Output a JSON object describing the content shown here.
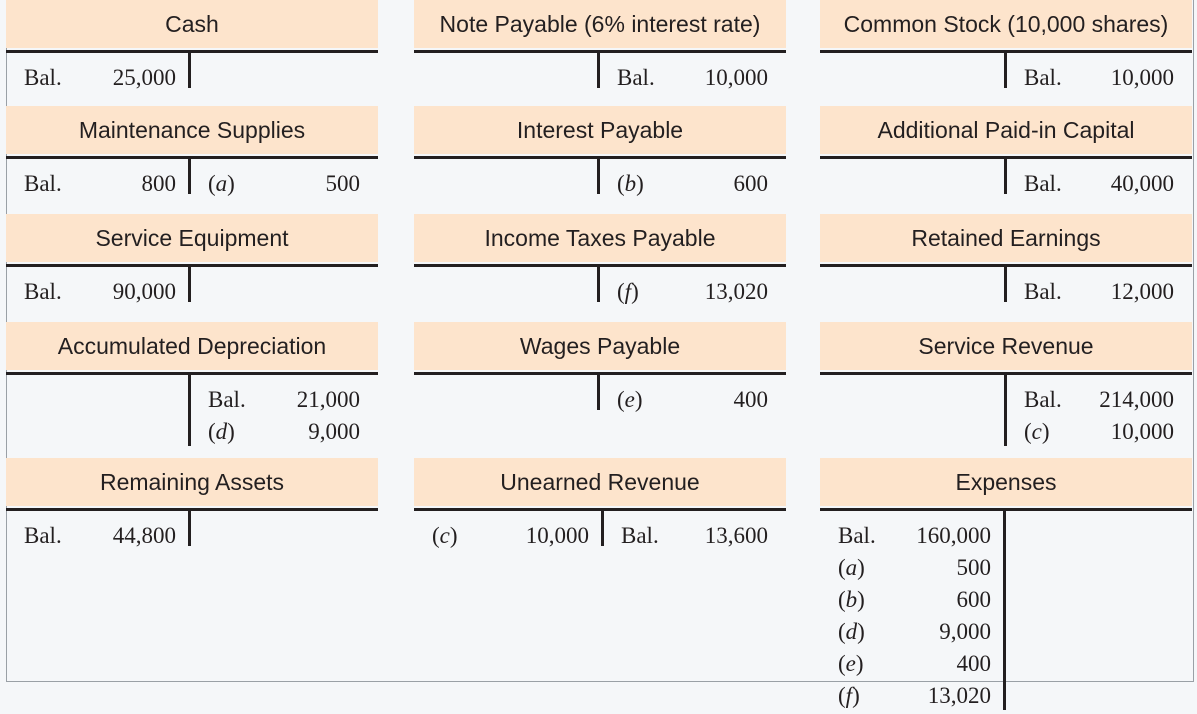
{
  "accounts": {
    "cash": {
      "title": "Cash",
      "debits": [
        {
          "label": "Bal.",
          "amount": "25,000"
        }
      ],
      "credits": []
    },
    "note_payable": {
      "title": "Note Payable (6% interest rate)",
      "debits": [],
      "credits": [
        {
          "label": "Bal.",
          "amount": "10,000"
        }
      ]
    },
    "common_stock": {
      "title": "Common Stock (10,000 shares)",
      "debits": [],
      "credits": [
        {
          "label": "Bal.",
          "amount": "10,000"
        }
      ]
    },
    "maintenance_supplies": {
      "title": "Maintenance Supplies",
      "debits": [
        {
          "label": "Bal.",
          "amount": "800"
        }
      ],
      "credits": [
        {
          "label": "(a)",
          "amount": "500"
        }
      ]
    },
    "interest_payable": {
      "title": "Interest Payable",
      "debits": [],
      "credits": [
        {
          "label": "(b)",
          "amount": "600"
        }
      ]
    },
    "additional_paid_in_capital": {
      "title": "Additional Paid-in Capital",
      "debits": [],
      "credits": [
        {
          "label": "Bal.",
          "amount": "40,000"
        }
      ]
    },
    "service_equipment": {
      "title": "Service Equipment",
      "debits": [
        {
          "label": "Bal.",
          "amount": "90,000"
        }
      ],
      "credits": []
    },
    "income_taxes_payable": {
      "title": "Income Taxes Payable",
      "debits": [],
      "credits": [
        {
          "label": "(f)",
          "amount": "13,020"
        }
      ]
    },
    "retained_earnings": {
      "title": "Retained Earnings",
      "debits": [],
      "credits": [
        {
          "label": "Bal.",
          "amount": "12,000"
        }
      ]
    },
    "accumulated_depreciation": {
      "title": "Accumulated Depreciation",
      "debits": [],
      "credits": [
        {
          "label": "Bal.",
          "amount": "21,000"
        },
        {
          "label": "(d)",
          "amount": "9,000"
        }
      ]
    },
    "wages_payable": {
      "title": "Wages Payable",
      "debits": [],
      "credits": [
        {
          "label": "(e)",
          "amount": "400"
        }
      ]
    },
    "service_revenue": {
      "title": "Service Revenue",
      "debits": [],
      "credits": [
        {
          "label": "Bal.",
          "amount": "214,000"
        },
        {
          "label": "(c)",
          "amount": "10,000"
        }
      ]
    },
    "remaining_assets": {
      "title": "Remaining Assets",
      "debits": [
        {
          "label": "Bal.",
          "amount": "44,800"
        }
      ],
      "credits": []
    },
    "unearned_revenue": {
      "title": "Unearned Revenue",
      "debits": [
        {
          "label": "(c)",
          "amount": "10,000"
        }
      ],
      "credits": [
        {
          "label": "Bal.",
          "amount": "13,600"
        }
      ]
    },
    "expenses": {
      "title": "Expenses",
      "debits": [
        {
          "label": "Bal.",
          "amount": "160,000"
        },
        {
          "label": "(a)",
          "amount": "500"
        },
        {
          "label": "(b)",
          "amount": "600"
        },
        {
          "label": "(d)",
          "amount": "9,000"
        },
        {
          "label": "(e)",
          "amount": "400"
        },
        {
          "label": "(f)",
          "amount": "13,020"
        }
      ],
      "credits": []
    }
  },
  "colors": {
    "title_fill": "#fde4cc",
    "rule": "#231f20",
    "background": "#f5f7f9"
  }
}
